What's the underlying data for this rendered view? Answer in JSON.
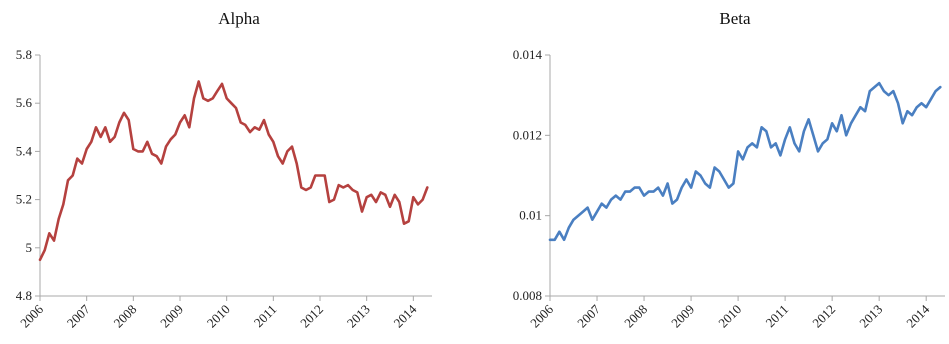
{
  "chart_data": [
    {
      "type": "line",
      "title": "Alpha",
      "xlabel": "",
      "ylabel": "",
      "xlim": [
        2006,
        2014.4
      ],
      "ylim": [
        4.8,
        5.8
      ],
      "yticks": [
        "4.8",
        "5",
        "5.2",
        "5.4",
        "5.6",
        "5.8"
      ],
      "xticks": [
        "2006",
        "2007",
        "2008",
        "2009",
        "2010",
        "2011",
        "2012",
        "2013",
        "2014"
      ],
      "grid": false,
      "legend": "none",
      "series": [
        {
          "color": "#b5413f",
          "x": [
            2006.0,
            2006.1,
            2006.2,
            2006.3,
            2006.4,
            2006.5,
            2006.6,
            2006.7,
            2006.8,
            2006.9,
            2007.0,
            2007.1,
            2007.2,
            2007.3,
            2007.4,
            2007.5,
            2007.6,
            2007.7,
            2007.8,
            2007.9,
            2008.0,
            2008.1,
            2008.2,
            2008.3,
            2008.4,
            2008.5,
            2008.6,
            2008.7,
            2008.8,
            2008.9,
            2009.0,
            2009.1,
            2009.2,
            2009.3,
            2009.4,
            2009.5,
            2009.6,
            2009.7,
            2009.8,
            2009.9,
            2010.0,
            2010.1,
            2010.2,
            2010.3,
            2010.4,
            2010.5,
            2010.6,
            2010.7,
            2010.8,
            2010.9,
            2011.0,
            2011.1,
            2011.2,
            2011.3,
            2011.4,
            2011.5,
            2011.6,
            2011.7,
            2011.8,
            2011.9,
            2012.0,
            2012.1,
            2012.2,
            2012.3,
            2012.4,
            2012.5,
            2012.6,
            2012.7,
            2012.8,
            2012.9,
            2013.0,
            2013.1,
            2013.2,
            2013.3,
            2013.4,
            2013.5,
            2013.6,
            2013.7,
            2013.8,
            2013.9,
            2014.0,
            2014.1,
            2014.2,
            2014.3
          ],
          "values": [
            4.95,
            4.99,
            5.06,
            5.03,
            5.12,
            5.18,
            5.28,
            5.3,
            5.37,
            5.35,
            5.41,
            5.44,
            5.5,
            5.46,
            5.5,
            5.44,
            5.46,
            5.52,
            5.56,
            5.53,
            5.41,
            5.4,
            5.4,
            5.44,
            5.39,
            5.38,
            5.35,
            5.42,
            5.45,
            5.47,
            5.52,
            5.55,
            5.5,
            5.62,
            5.69,
            5.62,
            5.61,
            5.62,
            5.65,
            5.68,
            5.62,
            5.6,
            5.58,
            5.52,
            5.51,
            5.48,
            5.5,
            5.49,
            5.53,
            5.47,
            5.44,
            5.38,
            5.35,
            5.4,
            5.42,
            5.35,
            5.25,
            5.24,
            5.25,
            5.3,
            5.3,
            5.3,
            5.19,
            5.2,
            5.26,
            5.25,
            5.26,
            5.24,
            5.23,
            5.15,
            5.21,
            5.22,
            5.19,
            5.23,
            5.22,
            5.17,
            5.22,
            5.19,
            5.1,
            5.11,
            5.21,
            5.18,
            5.2,
            5.25
          ]
        }
      ]
    },
    {
      "type": "line",
      "title": "Beta",
      "xlabel": "",
      "ylabel": "",
      "xlim": [
        2006,
        2014.4
      ],
      "ylim": [
        0.008,
        0.014
      ],
      "yticks": [
        "0.008",
        "0.01",
        "0.012",
        "0.014"
      ],
      "xticks": [
        "2006",
        "2007",
        "2008",
        "2009",
        "2010",
        "2011",
        "2012",
        "2013",
        "2014"
      ],
      "grid": false,
      "legend": "none",
      "series": [
        {
          "color": "#4a7fc1",
          "x": [
            2006.0,
            2006.1,
            2006.2,
            2006.3,
            2006.4,
            2006.5,
            2006.6,
            2006.7,
            2006.8,
            2006.9,
            2007.0,
            2007.1,
            2007.2,
            2007.3,
            2007.4,
            2007.5,
            2007.6,
            2007.7,
            2007.8,
            2007.9,
            2008.0,
            2008.1,
            2008.2,
            2008.3,
            2008.4,
            2008.5,
            2008.6,
            2008.7,
            2008.8,
            2008.9,
            2009.0,
            2009.1,
            2009.2,
            2009.3,
            2009.4,
            2009.5,
            2009.6,
            2009.7,
            2009.8,
            2009.9,
            2010.0,
            2010.1,
            2010.2,
            2010.3,
            2010.4,
            2010.5,
            2010.6,
            2010.7,
            2010.8,
            2010.9,
            2011.0,
            2011.1,
            2011.2,
            2011.3,
            2011.4,
            2011.5,
            2011.6,
            2011.7,
            2011.8,
            2011.9,
            2012.0,
            2012.1,
            2012.2,
            2012.3,
            2012.4,
            2012.5,
            2012.6,
            2012.7,
            2012.8,
            2012.9,
            2013.0,
            2013.1,
            2013.2,
            2013.3,
            2013.4,
            2013.5,
            2013.6,
            2013.7,
            2013.8,
            2013.9,
            2014.0,
            2014.1,
            2014.2,
            2014.3
          ],
          "values": [
            0.0094,
            0.0094,
            0.0096,
            0.0094,
            0.0097,
            0.0099,
            0.01,
            0.0101,
            0.0102,
            0.0099,
            0.0101,
            0.0103,
            0.0102,
            0.0104,
            0.0105,
            0.0104,
            0.0106,
            0.0106,
            0.0107,
            0.0107,
            0.0105,
            0.0106,
            0.0106,
            0.0107,
            0.0105,
            0.0108,
            0.0103,
            0.0104,
            0.0107,
            0.0109,
            0.0107,
            0.0111,
            0.011,
            0.0108,
            0.0107,
            0.0112,
            0.0111,
            0.0109,
            0.0107,
            0.0108,
            0.0116,
            0.0114,
            0.0117,
            0.0118,
            0.0117,
            0.0122,
            0.0121,
            0.0117,
            0.0118,
            0.0115,
            0.0119,
            0.0122,
            0.0118,
            0.0116,
            0.0121,
            0.0124,
            0.012,
            0.0116,
            0.0118,
            0.0119,
            0.0123,
            0.0121,
            0.0125,
            0.012,
            0.0123,
            0.0125,
            0.0127,
            0.0126,
            0.0131,
            0.0132,
            0.0133,
            0.0131,
            0.013,
            0.0131,
            0.0128,
            0.0123,
            0.0126,
            0.0125,
            0.0127,
            0.0128,
            0.0127,
            0.0129,
            0.0131,
            0.0132
          ]
        }
      ]
    }
  ]
}
